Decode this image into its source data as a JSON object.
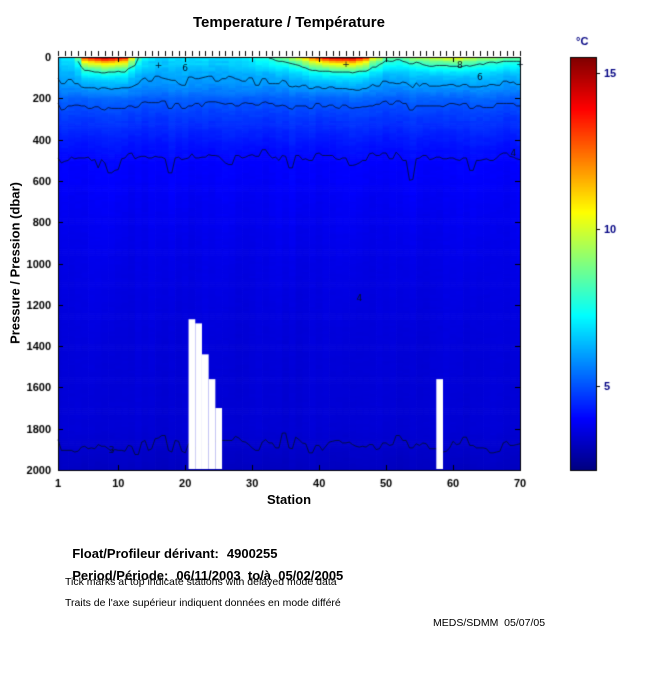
{
  "chart_data": {
    "type": "heatmap",
    "title": "Temperature / Température",
    "xlabel": "Station",
    "ylabel": "Pressure / Pression (dbar)",
    "xlim": [
      1,
      70
    ],
    "ylim": [
      0,
      2000
    ],
    "y_axis_inverted": true,
    "x_ticks": [
      1,
      10,
      20,
      30,
      40,
      50,
      60,
      70
    ],
    "y_ticks": [
      0,
      200,
      400,
      600,
      800,
      1000,
      1200,
      1400,
      1600,
      1800,
      2000
    ],
    "grid": false,
    "top_ticks_every_station": true,
    "colorbar": {
      "label": "°C",
      "ticks": [
        5,
        10,
        15
      ],
      "min": 2.3,
      "max": 15.5,
      "colormap": "jet"
    },
    "profile": {
      "depths": [
        0,
        25,
        50,
        75,
        100,
        150,
        200,
        250,
        300,
        400,
        500,
        700,
        1000,
        1400,
        1800,
        2000
      ],
      "temps": [
        12,
        9.6,
        8.2,
        7.2,
        6.6,
        5.9,
        5.25,
        4.9,
        4.65,
        4.28,
        3.97,
        3.8,
        3.62,
        3.46,
        3.4,
        3.15
      ]
    },
    "surface_temps": {
      "stations": [
        1,
        3,
        4,
        5,
        8,
        11,
        12,
        13,
        15,
        18,
        22,
        26,
        30,
        33,
        36,
        38,
        40,
        42,
        45,
        47,
        48,
        50,
        52,
        55,
        58,
        61,
        64,
        67,
        70
      ],
      "temps": [
        6.5,
        6.8,
        8.5,
        13.5,
        15.5,
        14.0,
        11.0,
        8.0,
        6.8,
        6.6,
        6.8,
        6.6,
        7.2,
        8.2,
        9.6,
        11.5,
        13.8,
        15.3,
        15.5,
        13.5,
        11.0,
        8.8,
        8.6,
        9.6,
        10.2,
        10.6,
        9.4,
        9.0,
        8.6
      ]
    },
    "contour_levels": [
      3.3,
      4,
      5,
      6,
      8
    ],
    "contour_labels": [
      {
        "text": "6",
        "station": 20,
        "depth": 55
      },
      {
        "text": "8",
        "station": 61,
        "depth": 40
      },
      {
        "text": "6",
        "station": 64,
        "depth": 95
      },
      {
        "text": "4",
        "station": 69,
        "depth": 465
      },
      {
        "text": "4",
        "station": 46,
        "depth": 1165
      },
      {
        "text": "3",
        "station": 9,
        "depth": 1905
      }
    ],
    "markers": [
      {
        "text": "+",
        "station": 16,
        "depth": 40
      },
      {
        "text": "+",
        "station": 44,
        "depth": 35
      },
      {
        "text": "+",
        "station": 70,
        "depth": 35
      }
    ],
    "missing_data": [
      {
        "station": 21,
        "from_dbar": 1270
      },
      {
        "station": 22,
        "from_dbar": 1290
      },
      {
        "station": 23,
        "from_dbar": 1440
      },
      {
        "station": 24,
        "from_dbar": 1560
      },
      {
        "station": 25,
        "from_dbar": 1700
      },
      {
        "station": 58,
        "from_dbar": 1560
      }
    ]
  },
  "footer": {
    "float_label": "Float/Profileur dérivant:",
    "float_value": "4900255",
    "period_label": "Period/Période:",
    "period_value": "06/11/2003  to/à  05/02/2005",
    "note_en": "Tick marks at top indicate stations with delayed mode data",
    "note_fr": "Traits de l'axe supérieur indiquent données en mode différé",
    "credit": "MEDS/SDMM  05/07/05"
  }
}
